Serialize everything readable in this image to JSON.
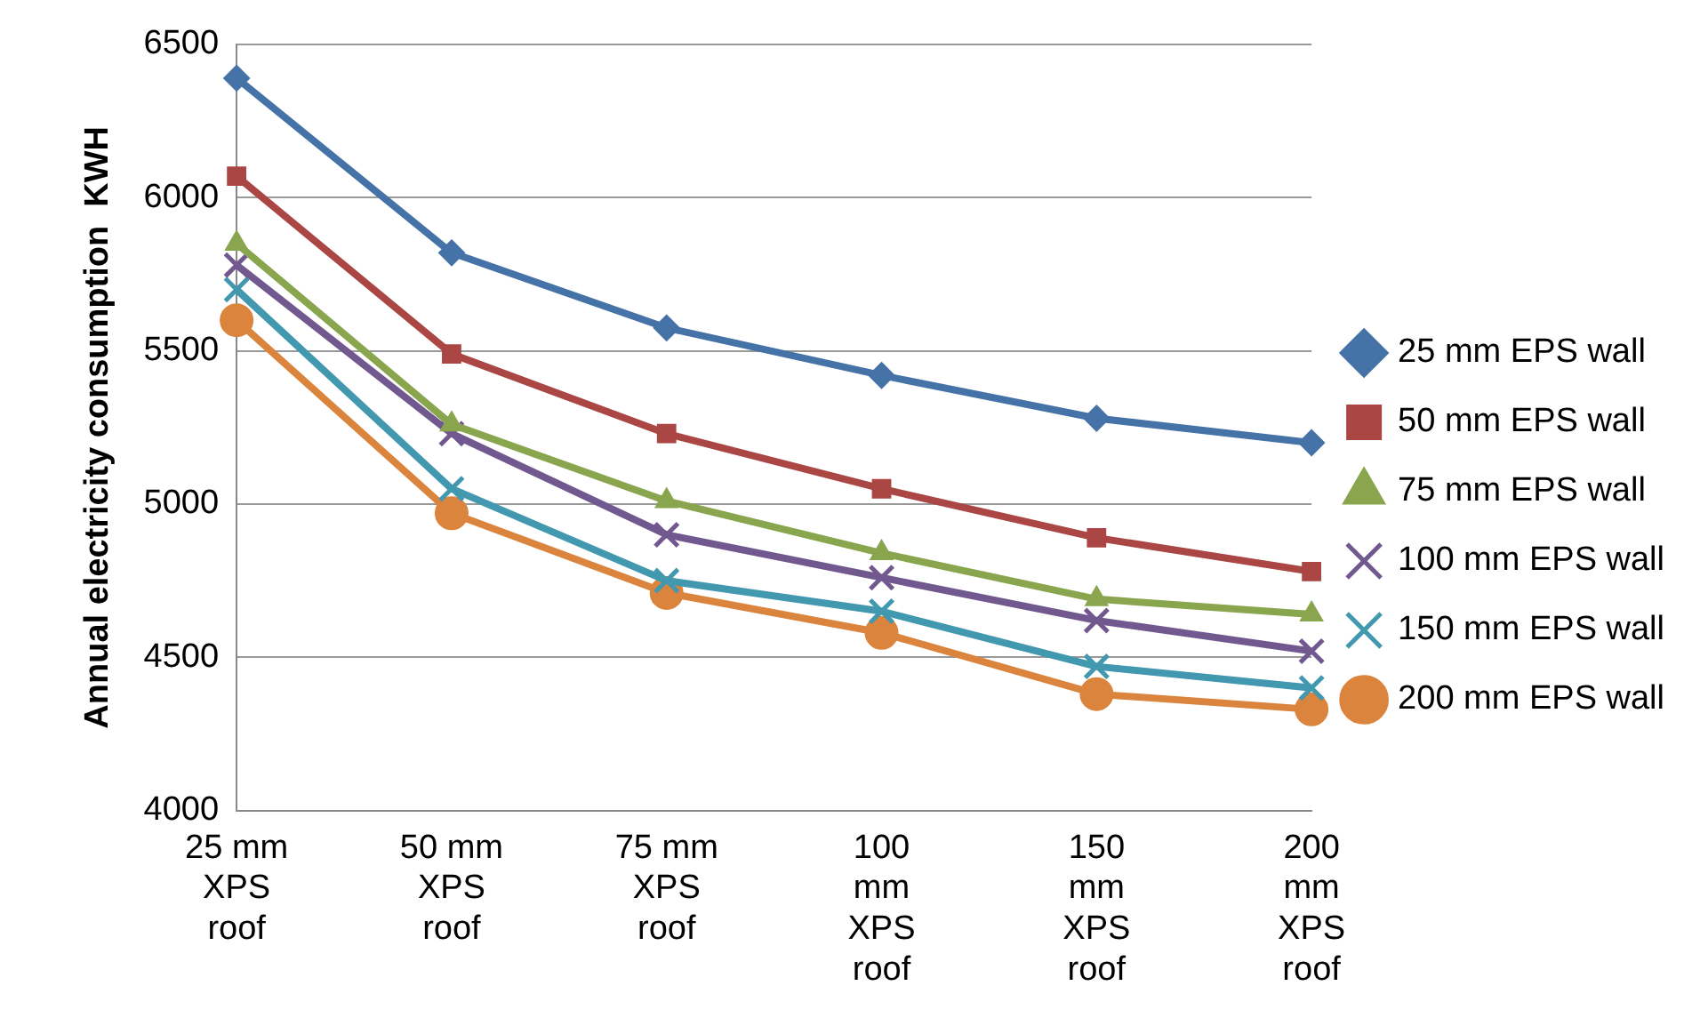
{
  "chart_data": {
    "type": "line",
    "ylabel": "Annual electricity consumption  KWH",
    "categories": [
      "25 mm XPS roof",
      "50 mm XPS roof",
      "75 mm XPS roof",
      "100 mm XPS roof",
      "150 mm XPS roof",
      "200 mm XPS roof"
    ],
    "ylim": [
      4000,
      6500
    ],
    "yticks": [
      4000,
      4500,
      5000,
      5500,
      6000,
      6500
    ],
    "grid": "y",
    "legend": "right",
    "line_style": "solid",
    "series": [
      {
        "name": "25 mm EPS wall",
        "color": "#4572a7",
        "marker": "diamond",
        "values": [
          6390,
          5820,
          5575,
          5420,
          5280,
          5200
        ]
      },
      {
        "name": "50 mm EPS wall",
        "color": "#aa4643",
        "marker": "square",
        "values": [
          6070,
          5490,
          5230,
          5050,
          4890,
          4780
        ]
      },
      {
        "name": "75 mm EPS wall",
        "color": "#89a54e",
        "marker": "triangle",
        "values": [
          5850,
          5260,
          5010,
          4840,
          4690,
          4640
        ]
      },
      {
        "name": "100 mm EPS wall",
        "color": "#71588f",
        "marker": "cross",
        "values": [
          5780,
          5230,
          4900,
          4760,
          4620,
          4520
        ]
      },
      {
        "name": "150 mm EPS wall",
        "color": "#4198af",
        "marker": "cross",
        "values": [
          5700,
          5050,
          4750,
          4650,
          4470,
          4400
        ]
      },
      {
        "name": "200 mm EPS wall",
        "color": "#db843d",
        "marker": "circle",
        "values": [
          5600,
          4970,
          4710,
          4580,
          4380,
          4330
        ]
      }
    ]
  }
}
